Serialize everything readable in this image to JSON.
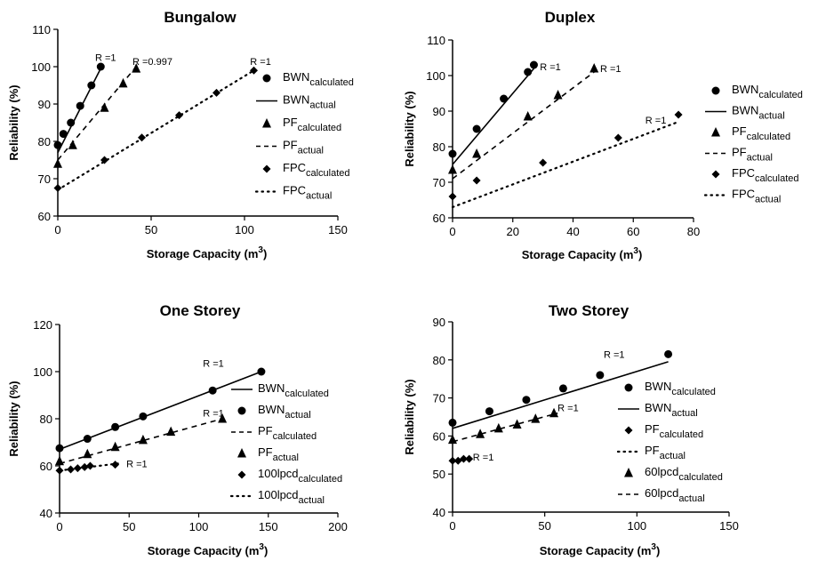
{
  "chart_data": [
    {
      "type": "scatter",
      "title": "Bungalow",
      "xlabel": "Storage Capacity (m",
      "xlabel_sup": "3",
      "xlabel_end": ")",
      "ylabel": "Reliability (%)",
      "xlim": [
        0,
        150
      ],
      "ylim": [
        60,
        110
      ],
      "xticks": [
        0,
        50,
        100,
        150
      ],
      "yticks": [
        60,
        70,
        80,
        90,
        100,
        110
      ],
      "grid": false,
      "legend_position": "right",
      "series": [
        {
          "legend": "BWN",
          "legend_sub": "calculated",
          "marker": "circle",
          "line": "none",
          "points": [
            [
              0,
              79
            ],
            [
              3,
              82
            ],
            [
              7,
              85
            ],
            [
              12,
              89.5
            ],
            [
              18,
              95
            ],
            [
              23,
              100
            ]
          ]
        },
        {
          "legend": "BWN",
          "legend_sub": "actual",
          "marker": "none",
          "line": "solid",
          "points": [
            [
              0,
              77
            ],
            [
              24,
              100.5
            ]
          ]
        },
        {
          "legend": "PF",
          "legend_sub": "calculated",
          "marker": "triangle",
          "line": "none",
          "points": [
            [
              0,
              74
            ],
            [
              8,
              79
            ],
            [
              25,
              89
            ],
            [
              35,
              95.5
            ],
            [
              42,
              99.5
            ]
          ]
        },
        {
          "legend": "PF",
          "legend_sub": "actual",
          "marker": "none",
          "line": "dashed",
          "points": [
            [
              0,
              75
            ],
            [
              42,
              100
            ]
          ]
        },
        {
          "legend": "FPC",
          "legend_sub": "calculated",
          "marker": "diamond",
          "line": "none",
          "points": [
            [
              0,
              67.5
            ],
            [
              25,
              75
            ],
            [
              45,
              81
            ],
            [
              65,
              87
            ],
            [
              85,
              93
            ],
            [
              105,
              99
            ]
          ]
        },
        {
          "legend": "FPC",
          "legend_sub": "actual",
          "marker": "none",
          "line": "dotted",
          "points": [
            [
              0,
              67
            ],
            [
              105,
              99
            ]
          ]
        }
      ],
      "annotations": [
        {
          "text": "R =1",
          "x": 20,
          "y": 101.5
        },
        {
          "text": "R =0.997",
          "x": 40,
          "y": 100.5
        },
        {
          "text": "R =1",
          "x": 103,
          "y": 100.5
        }
      ]
    },
    {
      "type": "scatter",
      "title": "Duplex",
      "xlabel": "Storage Capacity (m",
      "xlabel_sup": "3",
      "xlabel_end": ")",
      "ylabel": "Reliability (%)",
      "xlim": [
        0,
        80
      ],
      "ylim": [
        60,
        110
      ],
      "xticks": [
        0,
        20,
        40,
        60,
        80
      ],
      "yticks": [
        60,
        70,
        80,
        90,
        100,
        110
      ],
      "grid": false,
      "legend_position": "right",
      "series": [
        {
          "legend": "BWN",
          "legend_sub": "calculated",
          "marker": "circle",
          "line": "none",
          "points": [
            [
              0,
              78
            ],
            [
              8,
              85
            ],
            [
              17,
              93.5
            ],
            [
              25,
              101
            ],
            [
              27,
              103
            ]
          ]
        },
        {
          "legend": "BWN",
          "legend_sub": "actual",
          "marker": "none",
          "line": "solid",
          "points": [
            [
              0,
              75
            ],
            [
              27,
              102
            ]
          ]
        },
        {
          "legend": "PF",
          "legend_sub": "calculated",
          "marker": "triangle",
          "line": "none",
          "points": [
            [
              0,
              73.5
            ],
            [
              8,
              78
            ],
            [
              25,
              88.5
            ],
            [
              35,
              94.5
            ],
            [
              47,
              102
            ]
          ]
        },
        {
          "legend": "PF",
          "legend_sub": "actual",
          "marker": "none",
          "line": "dashed",
          "points": [
            [
              0,
              71
            ],
            [
              47,
              101
            ]
          ]
        },
        {
          "legend": "FPC",
          "legend_sub": "calculated",
          "marker": "diamond",
          "line": "none",
          "points": [
            [
              0,
              66
            ],
            [
              8,
              70.5
            ],
            [
              30,
              75.5
            ],
            [
              55,
              82.5
            ],
            [
              75,
              89
            ]
          ]
        },
        {
          "legend": "FPC",
          "legend_sub": "actual",
          "marker": "none",
          "line": "dotted",
          "points": [
            [
              0,
              63
            ],
            [
              75,
              87
            ]
          ]
        }
      ],
      "annotations": [
        {
          "text": "R =1",
          "x": 29,
          "y": 101.5
        },
        {
          "text": "R =1",
          "x": 49,
          "y": 101
        },
        {
          "text": "R =1",
          "x": 64,
          "y": 86.5
        }
      ]
    },
    {
      "type": "scatter",
      "title": "One Storey",
      "xlabel": "Storage Capacity (m",
      "xlabel_sup": "3",
      "xlabel_end": ")",
      "ylabel": "Reliability (%)",
      "xlim": [
        0,
        200
      ],
      "ylim": [
        40,
        120
      ],
      "xticks": [
        0,
        50,
        100,
        150,
        200
      ],
      "yticks": [
        40,
        60,
        80,
        100,
        120
      ],
      "grid": false,
      "legend_position": "right",
      "series": [
        {
          "legend": "BWN",
          "legend_sub": "calculated",
          "marker": "none",
          "line": "solid",
          "points": [
            [
              0,
              67
            ],
            [
              145,
              100
            ]
          ]
        },
        {
          "legend": "BWN",
          "legend_sub": "actual",
          "marker": "circle",
          "line": "none",
          "points": [
            [
              0,
              67.5
            ],
            [
              20,
              71.5
            ],
            [
              40,
              76.5
            ],
            [
              60,
              81
            ],
            [
              110,
              92
            ],
            [
              145,
              100
            ]
          ]
        },
        {
          "legend": "PF",
          "legend_sub": "calculated",
          "marker": "none",
          "line": "dashed",
          "points": [
            [
              0,
              61
            ],
            [
              117,
              80
            ]
          ]
        },
        {
          "legend": "PF",
          "legend_sub": "actual",
          "marker": "triangle",
          "line": "none",
          "points": [
            [
              0,
              62
            ],
            [
              20,
              65
            ],
            [
              40,
              68
            ],
            [
              60,
              71
            ],
            [
              80,
              74.5
            ],
            [
              117,
              80
            ]
          ]
        },
        {
          "legend": "100lpcd",
          "legend_sub": "calculated",
          "marker": "diamond",
          "line": "none",
          "points": [
            [
              0,
              58
            ],
            [
              8,
              58.5
            ],
            [
              13,
              59
            ],
            [
              18,
              59.5
            ],
            [
              22,
              60
            ],
            [
              40,
              60.5
            ]
          ]
        },
        {
          "legend": "100lpcd",
          "legend_sub": "actual",
          "marker": "none",
          "line": "dotted",
          "points": [
            [
              0,
              58
            ],
            [
              42,
              61
            ]
          ]
        }
      ],
      "annotations": [
        {
          "text": "R =1",
          "x": 103,
          "y": 102
        },
        {
          "text": "R =1",
          "x": 103,
          "y": 81
        },
        {
          "text": "R =1",
          "x": 48,
          "y": 59.5
        }
      ]
    },
    {
      "type": "scatter",
      "title": "Two Storey",
      "xlabel": "Storage Capacity (m",
      "xlabel_sup": "3",
      "xlabel_end": ")",
      "ylabel": "Reliability (%)",
      "xlim": [
        0,
        150
      ],
      "ylim": [
        40,
        90
      ],
      "xticks": [
        0,
        50,
        100,
        150
      ],
      "yticks": [
        40,
        50,
        60,
        70,
        80,
        90
      ],
      "grid": false,
      "legend_position": "right",
      "series": [
        {
          "legend": "BWN",
          "legend_sub": "calculated",
          "marker": "circle",
          "line": "none",
          "points": [
            [
              0,
              63.5
            ],
            [
              20,
              66.5
            ],
            [
              40,
              69.5
            ],
            [
              60,
              72.5
            ],
            [
              80,
              76
            ],
            [
              117,
              81.5
            ]
          ]
        },
        {
          "legend": "BWN",
          "legend_sub": "actual",
          "marker": "none",
          "line": "solid",
          "points": [
            [
              0,
              62
            ],
            [
              117,
              79.5
            ]
          ]
        },
        {
          "legend": "PF",
          "legend_sub": "calculated",
          "marker": "diamond",
          "line": "none",
          "points": [
            [
              0,
              53.5
            ],
            [
              3,
              53.5
            ],
            [
              6,
              54
            ],
            [
              9,
              54
            ]
          ]
        },
        {
          "legend": "PF",
          "legend_sub": "actual",
          "marker": "none",
          "line": "dotted",
          "points": [
            [
              0,
              53.3
            ],
            [
              9,
              54.2
            ]
          ]
        },
        {
          "legend": "60lpcd",
          "legend_sub": "calculated",
          "marker": "triangle",
          "line": "none",
          "points": [
            [
              0,
              59
            ],
            [
              15,
              60.5
            ],
            [
              25,
              62
            ],
            [
              35,
              63
            ],
            [
              45,
              64.5
            ],
            [
              55,
              66
            ]
          ]
        },
        {
          "legend": "60lpcd",
          "legend_sub": "actual",
          "marker": "none",
          "line": "dashed",
          "points": [
            [
              0,
              58.5
            ],
            [
              57,
              66
            ]
          ]
        }
      ],
      "annotations": [
        {
          "text": "R =1",
          "x": 82,
          "y": 80.5
        },
        {
          "text": "R =1",
          "x": 57,
          "y": 66.5
        },
        {
          "text": "R =1",
          "x": 11,
          "y": 53.5
        }
      ]
    }
  ]
}
